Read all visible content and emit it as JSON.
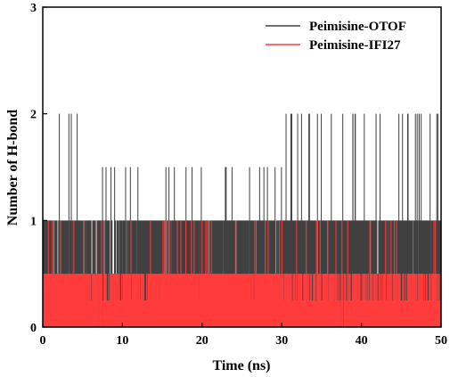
{
  "chart_data": {
    "type": "line",
    "title": "",
    "xlabel": "Time (ns)",
    "ylabel": "Number of H-bond",
    "xlim": [
      0,
      50
    ],
    "ylim": [
      0,
      3
    ],
    "xticks": [
      "0",
      "10",
      "20",
      "30",
      "40",
      "50"
    ],
    "yticks": [
      "0",
      "1",
      "2",
      "3"
    ],
    "grid": false,
    "legend_position": "top-right",
    "series": [
      {
        "name": "Peimisine-OTOF",
        "color": "#404040",
        "segments": [
          {
            "x_start": 0,
            "x_end": 6,
            "low": 0,
            "high": 1,
            "spikes_to": 2,
            "density": 0.45
          },
          {
            "x_start": 6,
            "x_end": 12,
            "low": 0,
            "high": 1,
            "spikes_to": 1.5,
            "density": 0.35
          },
          {
            "x_start": 12,
            "x_end": 20,
            "low": 0,
            "high": 1,
            "spikes_to": 1.5,
            "density": 0.45
          },
          {
            "x_start": 20,
            "x_end": 30,
            "low": 0,
            "high": 1,
            "spikes_to": 1.5,
            "density": 0.5
          },
          {
            "x_start": 30,
            "x_end": 40,
            "low": 0,
            "high": 1,
            "spikes_to": 2,
            "density": 0.7
          },
          {
            "x_start": 40,
            "x_end": 50,
            "low": 0,
            "high": 1,
            "spikes_to": 2,
            "density": 0.65
          }
        ]
      },
      {
        "name": "Peimisine-IFI27",
        "color": "#ff3b3b",
        "segments": [
          {
            "x_start": 0,
            "x_end": 6,
            "low": 0,
            "high": 0.5,
            "spikes_to": 1,
            "density": 0.8
          },
          {
            "x_start": 6,
            "x_end": 14,
            "low": 0,
            "high": 0.5,
            "spikes_to": 1,
            "density": 0.4
          },
          {
            "x_start": 14,
            "x_end": 30,
            "low": 0,
            "high": 0.5,
            "spikes_to": 1,
            "density": 0.65
          },
          {
            "x_start": 30,
            "x_end": 42,
            "low": 0,
            "high": 0.5,
            "spikes_to": 1,
            "density": 0.35
          },
          {
            "x_start": 42,
            "x_end": 50,
            "low": 0,
            "high": 0.5,
            "spikes_to": 1,
            "density": 0.3
          }
        ]
      }
    ]
  }
}
